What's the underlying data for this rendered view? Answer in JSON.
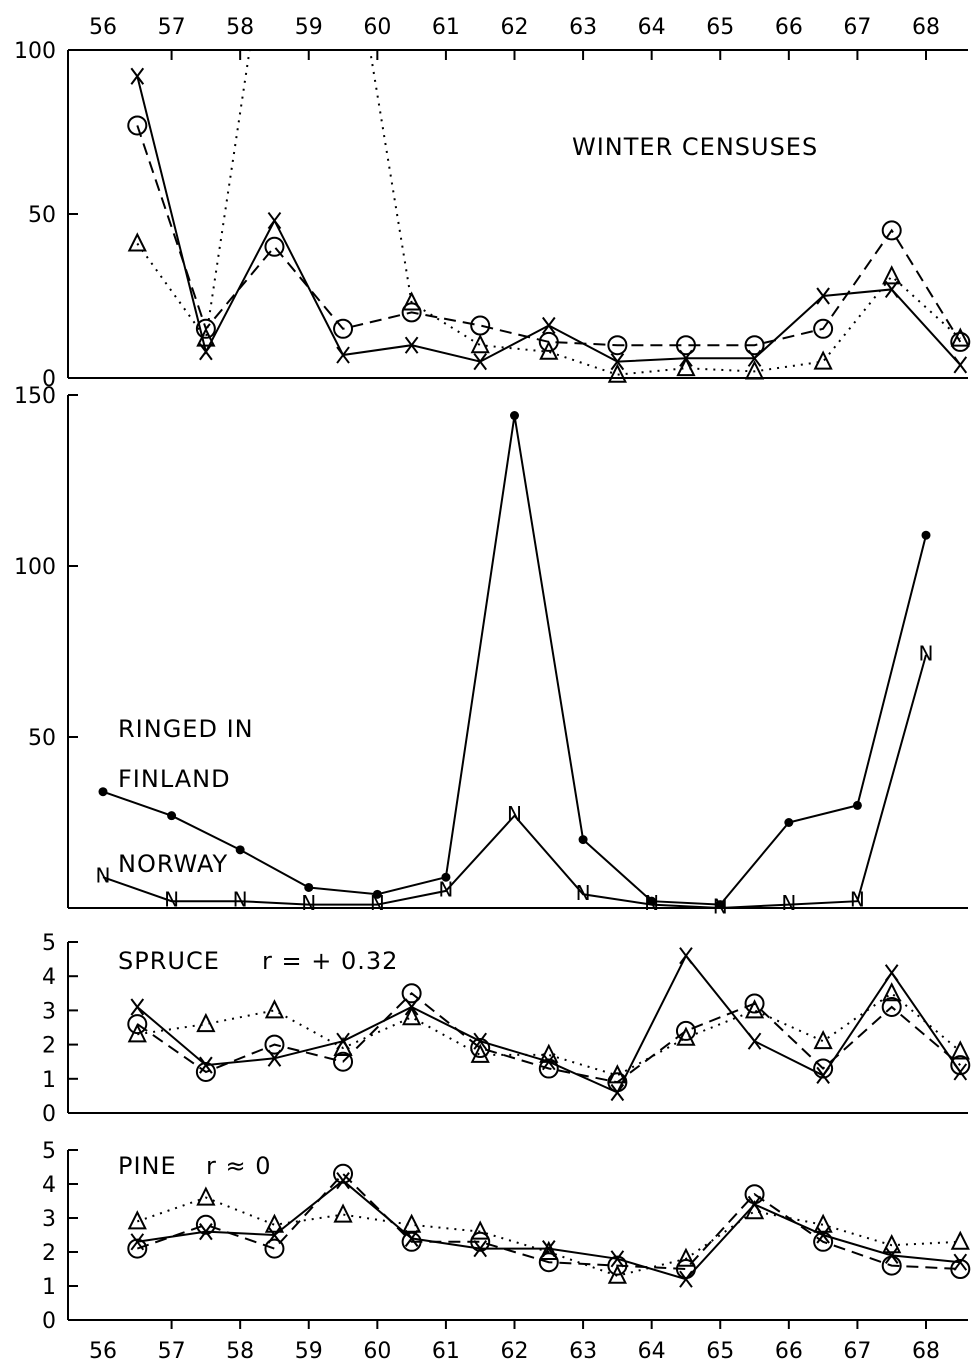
{
  "chart_data": [
    {
      "panel": "winter",
      "type": "line",
      "x": [
        56.5,
        57.5,
        58.5,
        59.5,
        60.5,
        61.5,
        62.5,
        63.5,
        64.5,
        65.5,
        66.5,
        67.5,
        68.5
      ],
      "x_tick_labels": [
        "56",
        "57",
        "58",
        "59",
        "60",
        "61",
        "62",
        "63",
        "64",
        "65",
        "66",
        "67",
        "68"
      ],
      "ylim": [
        0,
        100
      ],
      "y_ticks": [
        0,
        50,
        100
      ],
      "annotations": [
        "WINTER  CENSUSES"
      ],
      "series": [
        {
          "marker": "x",
          "line": "solid",
          "values": [
            92,
            8,
            48,
            7,
            10,
            5,
            16,
            5,
            6,
            6,
            25,
            27,
            4
          ]
        },
        {
          "marker": "circle",
          "line": "dashed",
          "values": [
            77,
            15,
            40,
            15,
            20,
            16,
            11,
            10,
            10,
            10,
            15,
            45,
            11
          ]
        },
        {
          "marker": "triangle",
          "line": "dotted",
          "values": [
            41,
            12,
            150,
            150,
            23,
            10,
            8,
            1,
            3,
            2,
            5,
            31,
            12
          ]
        }
      ]
    },
    {
      "panel": "ringed",
      "type": "line",
      "x": [
        56,
        57,
        58,
        59,
        60,
        61,
        62,
        63,
        64,
        65,
        66,
        67,
        68
      ],
      "ylim": [
        0,
        150
      ],
      "y_ticks": [
        50,
        100,
        150
      ],
      "annotations": [
        "RINGED  IN",
        "FINLAND",
        "NORWAY"
      ],
      "series": [
        {
          "label": "FINLAND",
          "marker": "dot",
          "line": "solid",
          "values": [
            34,
            27,
            17,
            6,
            4,
            9,
            144,
            20,
            2,
            1,
            25,
            30,
            109
          ]
        },
        {
          "label": "N",
          "marker": "letter",
          "line": "solid",
          "values": [
            9,
            2,
            2,
            1,
            1,
            5,
            27,
            4,
            1,
            0,
            1,
            2,
            74
          ]
        }
      ]
    },
    {
      "panel": "spruce",
      "type": "line",
      "x": [
        56.5,
        57.5,
        58.5,
        59.5,
        60.5,
        61.5,
        62.5,
        63.5,
        64.5,
        65.5,
        66.5,
        67.5,
        68.5
      ],
      "ylim": [
        0,
        5
      ],
      "y_ticks": [
        0,
        1,
        2,
        3,
        4,
        5
      ],
      "annotations": [
        "SPRUCE",
        "r = + 0.32"
      ],
      "series": [
        {
          "marker": "x",
          "line": "solid",
          "values": [
            3.1,
            1.4,
            1.6,
            2.1,
            3.1,
            2.1,
            1.5,
            0.6,
            4.6,
            2.1,
            1.1,
            4.1,
            1.2
          ]
        },
        {
          "marker": "circle",
          "line": "dashed",
          "values": [
            2.6,
            1.2,
            2.0,
            1.5,
            3.5,
            1.9,
            1.3,
            0.9,
            2.4,
            3.2,
            1.3,
            3.1,
            1.4
          ]
        },
        {
          "marker": "triangle",
          "line": "dotted",
          "values": [
            2.3,
            2.6,
            3.0,
            1.9,
            2.8,
            1.7,
            1.7,
            1.1,
            2.2,
            3.0,
            2.1,
            3.5,
            1.8
          ]
        }
      ]
    },
    {
      "panel": "pine",
      "type": "line",
      "x": [
        56.5,
        57.5,
        58.5,
        59.5,
        60.5,
        61.5,
        62.5,
        63.5,
        64.5,
        65.5,
        66.5,
        67.5,
        68.5
      ],
      "x_tick_labels": [
        "56",
        "57",
        "58",
        "59",
        "60",
        "61",
        "62",
        "63",
        "64",
        "65",
        "66",
        "67",
        "68"
      ],
      "ylim": [
        0,
        5
      ],
      "y_ticks": [
        0,
        1,
        2,
        3,
        4,
        5
      ],
      "annotations": [
        "PINE",
        "r ≈ 0"
      ],
      "series": [
        {
          "marker": "x",
          "line": "solid",
          "values": [
            2.3,
            2.6,
            2.5,
            4.1,
            2.4,
            2.1,
            2.1,
            1.8,
            1.2,
            3.4,
            2.5,
            1.9,
            1.7
          ]
        },
        {
          "marker": "circle",
          "line": "dashed",
          "values": [
            2.1,
            2.8,
            2.1,
            4.3,
            2.3,
            2.3,
            1.7,
            1.6,
            1.5,
            3.7,
            2.3,
            1.6,
            1.5
          ]
        },
        {
          "marker": "triangle",
          "line": "dotted",
          "values": [
            2.9,
            3.6,
            2.8,
            3.1,
            2.8,
            2.6,
            2.0,
            1.3,
            1.8,
            3.2,
            2.8,
            2.2,
            2.3
          ]
        }
      ]
    }
  ]
}
